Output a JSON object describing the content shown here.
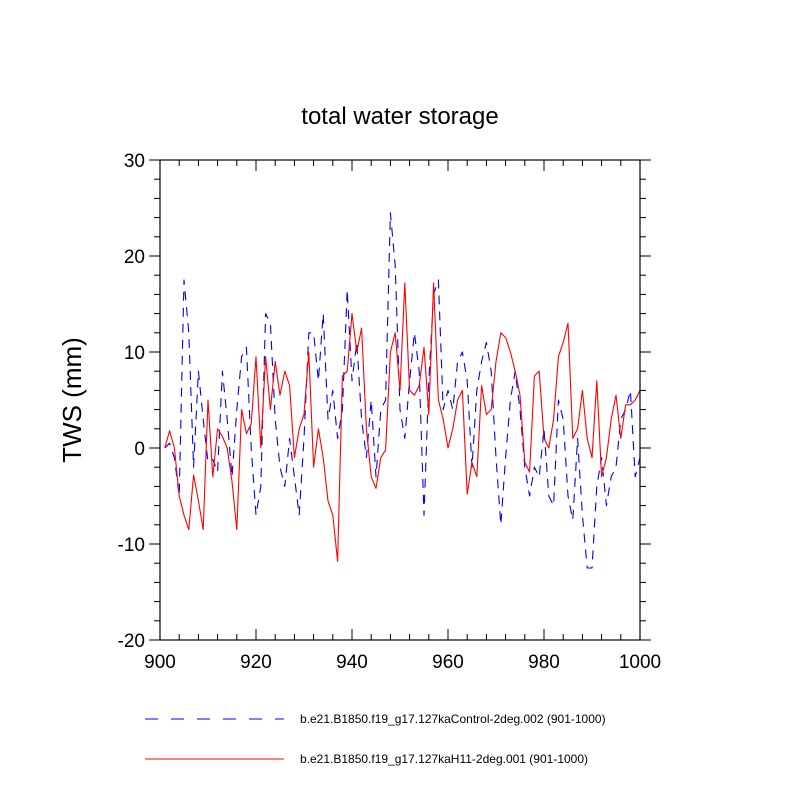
{
  "chart_data": {
    "type": "line",
    "title": "total water storage",
    "xlabel": "",
    "ylabel": "TWS  (mm)",
    "xlim": [
      900,
      1000
    ],
    "ylim": [
      -20,
      30
    ],
    "xticks": [
      900,
      920,
      940,
      960,
      980,
      1000
    ],
    "yticks": [
      -20,
      -10,
      0,
      10,
      20,
      30
    ],
    "xtick_labels": [
      "900",
      "920",
      "940",
      "960",
      "980",
      "1000"
    ],
    "ytick_labels": [
      "-20",
      "-10",
      "0",
      "10",
      "20",
      "30"
    ],
    "grid": false,
    "legend_position": "bottom",
    "series": [
      {
        "name": "b.e21.B1850.f19_g17.127kaControl-2deg.002 (901-1000)",
        "color": "#0000ff",
        "dash": "dashed",
        "x": [
          901,
          902,
          903,
          904,
          905,
          906,
          907,
          908,
          909,
          910,
          911,
          912,
          913,
          914,
          915,
          916,
          917,
          918,
          919,
          920,
          921,
          922,
          923,
          924,
          925,
          926,
          927,
          928,
          929,
          930,
          931,
          932,
          933,
          934,
          935,
          936,
          937,
          938,
          939,
          940,
          941,
          942,
          943,
          944,
          945,
          946,
          947,
          948,
          949,
          950,
          951,
          952,
          953,
          954,
          955,
          956,
          957,
          958,
          959,
          960,
          961,
          962,
          963,
          964,
          965,
          966,
          967,
          968,
          969,
          970,
          971,
          972,
          973,
          974,
          975,
          976,
          977,
          978,
          979,
          980,
          981,
          982,
          983,
          984,
          985,
          986,
          987,
          988,
          989,
          990,
          991,
          992,
          993,
          994,
          995,
          996,
          997,
          998,
          999,
          1000
        ],
        "values": [
          0,
          0.5,
          -1,
          -5,
          17.5,
          12,
          -2,
          8,
          3,
          -1.5,
          -1.2,
          -2.5,
          8,
          3,
          -3,
          4,
          9.5,
          10.5,
          0,
          -7,
          -4,
          14,
          13,
          3,
          -2,
          -4,
          1,
          -3,
          -7,
          1,
          12,
          12,
          7,
          14,
          3,
          6,
          1,
          4,
          16.5,
          7,
          11,
          3,
          -1,
          5,
          -3,
          4,
          5,
          24.5,
          19,
          4,
          1,
          7,
          12,
          8,
          -7,
          7,
          16,
          17.5,
          4,
          6,
          4,
          9,
          10,
          7,
          -2,
          6,
          9,
          11,
          8,
          -1,
          -8,
          -1,
          5,
          8,
          4,
          -2,
          -5,
          -2,
          -3,
          2,
          -5,
          -6,
          5,
          3,
          -5,
          -7.5,
          1,
          -7,
          -12.5,
          -12.5,
          -4,
          -1,
          -6,
          -3,
          -2,
          3,
          4,
          6,
          -3,
          -1
        ]
      },
      {
        "name": "b.e21.B1850.f19_g17.127kaH11-2deg.001 (901-1000)",
        "color": "#ff0000",
        "dash": "solid",
        "x": [
          901,
          902,
          903,
          904,
          905,
          906,
          907,
          908,
          909,
          910,
          911,
          912,
          913,
          914,
          915,
          916,
          917,
          918,
          919,
          920,
          921,
          922,
          923,
          924,
          925,
          926,
          927,
          928,
          929,
          930,
          931,
          932,
          933,
          934,
          935,
          936,
          937,
          938,
          939,
          940,
          941,
          942,
          943,
          944,
          945,
          946,
          947,
          948,
          949,
          950,
          951,
          952,
          953,
          954,
          955,
          956,
          957,
          958,
          959,
          960,
          961,
          962,
          963,
          964,
          965,
          966,
          967,
          968,
          969,
          970,
          971,
          972,
          973,
          974,
          975,
          976,
          977,
          978,
          979,
          980,
          981,
          982,
          983,
          984,
          985,
          986,
          987,
          988,
          989,
          990,
          991,
          992,
          993,
          994,
          995,
          996,
          997,
          998,
          999,
          1000
        ],
        "values": [
          0,
          1.8,
          0,
          -5,
          -7,
          -8.5,
          -2.8,
          -5.5,
          -8.5,
          5,
          -3,
          2,
          1.2,
          0,
          -3.5,
          -8.5,
          4,
          1.5,
          2.5,
          9.5,
          0,
          9.5,
          4,
          9,
          5.5,
          8,
          6.5,
          -1,
          2,
          3.5,
          10,
          -2,
          2,
          -1,
          -5.5,
          -7,
          -11.8,
          7.5,
          8,
          14,
          10,
          12.5,
          2,
          -3,
          -4.2,
          -1,
          -0.2,
          10,
          12,
          6,
          17.2,
          6,
          5.5,
          6.5,
          10.5,
          3.5,
          17.2,
          5,
          3,
          0,
          2,
          5,
          6,
          -4.8,
          -1.5,
          -3,
          6.5,
          3.5,
          4,
          9,
          12,
          11.5,
          10,
          8,
          5.5,
          -1.5,
          -2.5,
          7.5,
          8,
          1,
          0,
          3,
          9.5,
          11,
          13,
          1,
          2,
          6,
          1,
          -1,
          7,
          -3,
          -1,
          3,
          5.5,
          1,
          4.5,
          4.5,
          5,
          6
        ]
      }
    ]
  }
}
